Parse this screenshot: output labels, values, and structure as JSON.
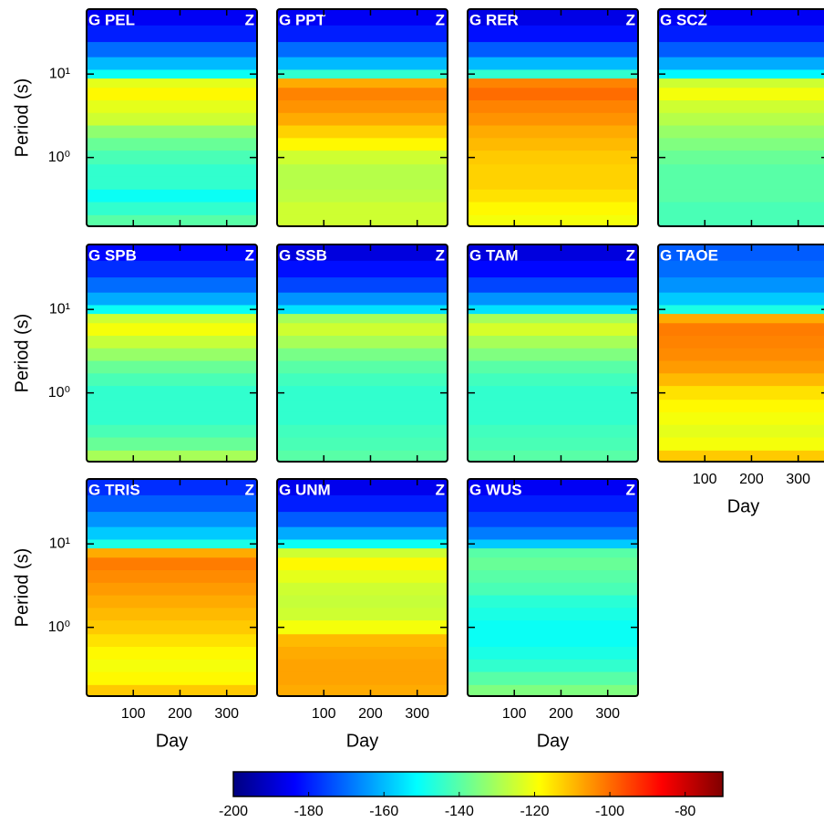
{
  "chart_data": {
    "type": "spectrogram",
    "ylabel": "Period (s)",
    "xlabel": "Day",
    "xlim": [
      0,
      365
    ],
    "xticks": [
      100,
      200,
      300
    ],
    "ylim": [
      0.15,
      60
    ],
    "log_y": true,
    "yticks": [
      {
        "value": 1,
        "label": "10⁰"
      },
      {
        "value": 10,
        "label": "10¹"
      }
    ],
    "clim": [
      -200,
      -70
    ],
    "cticks": [
      -200,
      -180,
      -160,
      -140,
      -120,
      -100,
      -80
    ],
    "colormap": "jet",
    "periods": [
      0.17,
      0.25,
      0.35,
      0.5,
      0.7,
      1,
      1.5,
      2,
      3,
      4,
      6,
      8,
      10,
      13,
      20,
      30,
      50
    ],
    "panels": [
      {
        "label": "G PEL",
        "component": "Z",
        "levels": [
          -140,
          -145,
          -150,
          -145,
          -145,
          -142,
          -138,
          -133,
          -125,
          -122,
          -118,
          -122,
          -150,
          -160,
          -170,
          -180,
          -185
        ]
      },
      {
        "label": "G PPT",
        "component": "Z",
        "levels": [
          -125,
          -125,
          -127,
          -128,
          -128,
          -125,
          -118,
          -113,
          -108,
          -105,
          -103,
          -108,
          -145,
          -160,
          -170,
          -180,
          -185
        ]
      },
      {
        "label": "G RER",
        "component": "Z",
        "levels": [
          -120,
          -118,
          -115,
          -113,
          -113,
          -112,
          -110,
          -108,
          -105,
          -103,
          -100,
          -103,
          -145,
          -160,
          -172,
          -182,
          -187
        ]
      },
      {
        "label": "G SCZ",
        "levels": [
          -142,
          -142,
          -140,
          -140,
          -140,
          -138,
          -135,
          -132,
          -128,
          -125,
          -120,
          -125,
          -152,
          -162,
          -172,
          -180,
          -185
        ]
      },
      {
        "label": "G SPB",
        "component": "Z",
        "levels": [
          -130,
          -138,
          -142,
          -145,
          -145,
          -145,
          -142,
          -138,
          -132,
          -126,
          -120,
          -125,
          -150,
          -162,
          -170,
          -178,
          -183
        ]
      },
      {
        "label": "G SSB",
        "component": "Z",
        "levels": [
          -140,
          -142,
          -143,
          -145,
          -145,
          -145,
          -143,
          -140,
          -136,
          -130,
          -125,
          -130,
          -155,
          -165,
          -175,
          -182,
          -188
        ]
      },
      {
        "label": "G TAM",
        "component": "Z",
        "levels": [
          -140,
          -142,
          -143,
          -145,
          -145,
          -145,
          -143,
          -140,
          -135,
          -130,
          -124,
          -130,
          -155,
          -165,
          -175,
          -183,
          -188
        ]
      },
      {
        "label": "G TAOE",
        "levels": [
          -112,
          -120,
          -122,
          -120,
          -118,
          -115,
          -110,
          -106,
          -104,
          -103,
          -102,
          -108,
          -148,
          -158,
          -165,
          -170,
          -172
        ]
      },
      {
        "label": "G TRIS",
        "component": "Z",
        "levels": [
          -112,
          -118,
          -120,
          -118,
          -115,
          -112,
          -110,
          -108,
          -106,
          -104,
          -102,
          -108,
          -148,
          -158,
          -165,
          -172,
          -178
        ]
      },
      {
        "label": "G UNM",
        "component": "Z",
        "levels": [
          -108,
          -107,
          -107,
          -108,
          -110,
          -120,
          -125,
          -126,
          -125,
          -122,
          -118,
          -125,
          -150,
          -162,
          -172,
          -180,
          -186
        ]
      },
      {
        "label": "G WUS",
        "component": "Z",
        "levels": [
          -135,
          -140,
          -145,
          -148,
          -150,
          -150,
          -148,
          -146,
          -142,
          -140,
          -138,
          -140,
          -158,
          -168,
          -175,
          -180,
          -185
        ]
      }
    ]
  }
}
